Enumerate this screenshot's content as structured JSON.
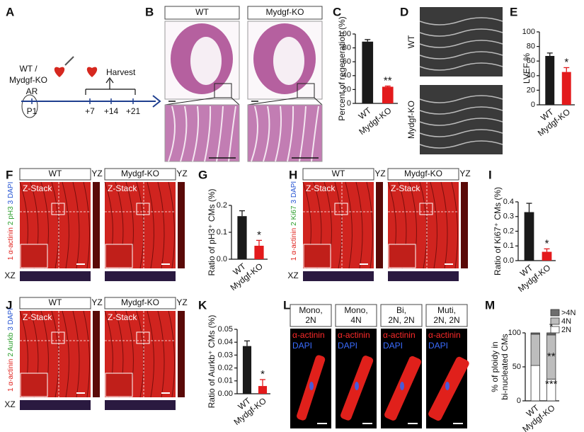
{
  "panels": {
    "letters": [
      "A",
      "B",
      "C",
      "D",
      "E",
      "F",
      "G",
      "H",
      "I",
      "J",
      "K",
      "L",
      "M"
    ]
  },
  "scheme": {
    "genotype": [
      "WT /",
      "Mydgf-KO"
    ],
    "surgery": "AR",
    "timepoints": [
      "P1",
      "+7",
      "+14",
      "+21"
    ],
    "harvest": "Harvest"
  },
  "histology": {
    "groups": [
      "WT",
      "Mydgf-KO"
    ]
  },
  "echo": {
    "groups": [
      "WT",
      "Mydgf-KO"
    ]
  },
  "stains": [
    {
      "groups": [
        "WT",
        "Mydgf-KO"
      ],
      "orth": [
        "YZ",
        "XZ"
      ],
      "zstack": "Z-Stack",
      "channels": [
        {
          "text": "1 α-actinin",
          "color": "#e0201b"
        },
        {
          "text": "2 pH3",
          "color": "#2a9d2a"
        },
        {
          "text": "3 DAPI",
          "color": "#1f4fd1"
        }
      ]
    },
    {
      "groups": [
        "WT",
        "Mydgf-KO"
      ],
      "orth": [
        "YZ",
        "XZ"
      ],
      "zstack": "Z-Stack",
      "channels": [
        {
          "text": "1 α-actinin",
          "color": "#e0201b"
        },
        {
          "text": "2 Ki67",
          "color": "#2a9d2a"
        },
        {
          "text": "3 DAPI",
          "color": "#1f4fd1"
        }
      ]
    },
    {
      "groups": [
        "WT",
        "Mydgf-KO"
      ],
      "orth": [
        "YZ",
        "XZ"
      ],
      "zstack": "Z-Stack",
      "channels": [
        {
          "text": "1 α-actinin",
          "color": "#e0201b"
        },
        {
          "text": "2 Aurkb",
          "color": "#2a9d2a"
        },
        {
          "text": "3 DAPI",
          "color": "#1f4fd1"
        }
      ]
    }
  ],
  "cells": {
    "columns": [
      {
        "header": [
          "Mono,",
          "2N"
        ],
        "labels": [
          {
            "text": "α-actinin",
            "color": "#ff2a2a"
          },
          {
            "text": "DAPI",
            "color": "#3a6cff"
          }
        ]
      },
      {
        "header": [
          "Mono,",
          "4N"
        ],
        "labels": [
          {
            "text": "α-actinin",
            "color": "#ff2a2a"
          },
          {
            "text": "DAPI",
            "color": "#3a6cff"
          }
        ]
      },
      {
        "header": [
          "Bi,",
          "2N, 2N"
        ],
        "labels": [
          {
            "text": "α-actinin",
            "color": "#ff2a2a"
          },
          {
            "text": "DAPI",
            "color": "#3a6cff"
          }
        ]
      },
      {
        "header": [
          "Muti,",
          "2N, 2N"
        ],
        "labels": [
          {
            "text": "α-actinin",
            "color": "#ff2a2a"
          },
          {
            "text": "DAPI",
            "color": "#3a6cff"
          }
        ]
      }
    ]
  },
  "chart_data": [
    {
      "type": "bar",
      "ylabel": [
        "Percent of regeneration (%)"
      ],
      "categories": [
        "WT",
        "Mydgf-KO"
      ],
      "values": [
        89,
        24
      ],
      "errors": [
        3,
        1
      ],
      "colors": [
        "#1a1a1a",
        "#e31a1c"
      ],
      "ylim": [
        0,
        100
      ],
      "yticks": [
        0,
        20,
        40,
        60,
        80,
        100
      ],
      "annotation": "**"
    },
    {
      "type": "bar",
      "ylabel": [
        "LVEF %"
      ],
      "categories": [
        "WT",
        "Mydgf-KO"
      ],
      "values": [
        67,
        45
      ],
      "errors": [
        4,
        6
      ],
      "colors": [
        "#1a1a1a",
        "#e31a1c"
      ],
      "ylim": [
        0,
        100
      ],
      "yticks": [
        0,
        20,
        40,
        60,
        80,
        100
      ],
      "annotation": "*"
    },
    {
      "type": "bar",
      "ylabel": [
        "Ratio of pH3⁺ CMs (%)"
      ],
      "categories": [
        "WT",
        "Mydgf-KO"
      ],
      "values": [
        0.16,
        0.05
      ],
      "errors": [
        0.02,
        0.02
      ],
      "colors": [
        "#1a1a1a",
        "#e31a1c"
      ],
      "ylim": [
        0,
        0.2
      ],
      "yticks": [
        {
          "value": 0,
          "label": "0.0"
        },
        0.1,
        0.2
      ],
      "annotation": "*"
    },
    {
      "type": "bar",
      "ylabel": [
        "Ratio of Ki67⁺ CMs (%)"
      ],
      "categories": [
        "WT",
        "Mydgf-KO"
      ],
      "values": [
        0.33,
        0.06
      ],
      "errors": [
        0.06,
        0.02
      ],
      "colors": [
        "#1a1a1a",
        "#e31a1c"
      ],
      "ylim": [
        0,
        0.4
      ],
      "yticks": [
        {
          "value": 0,
          "label": "0.0"
        },
        0.1,
        0.2,
        0.3,
        0.4
      ],
      "annotation": "*"
    },
    {
      "type": "bar",
      "ylabel": [
        "Ratio of Aurkb⁺ CMs (%)"
      ],
      "categories": [
        "WT",
        "Mydgf-KO"
      ],
      "values": [
        0.037,
        0.006
      ],
      "errors": [
        0.004,
        0.005
      ],
      "colors": [
        "#1a1a1a",
        "#e31a1c"
      ],
      "ylim": [
        0,
        0.05
      ],
      "yticks": [
        {
          "value": 0,
          "label": "0.00"
        },
        0.01,
        0.02,
        0.03,
        0.04,
        0.05
      ],
      "annotation": "*"
    },
    {
      "type": "stacked_bar",
      "ylabel": [
        "% of ploidy in",
        "bi-nucleated CMs"
      ],
      "categories": [
        "WT",
        "Mydgf-KO"
      ],
      "series": [
        {
          "name": "2N",
          "color": "#ffffff",
          "values": [
            52,
            32
          ]
        },
        {
          "name": "4N",
          "color": "#bdbdbd",
          "values": [
            46,
            65
          ]
        },
        {
          "name": ">4N",
          "color": "#6e6e6e",
          "values": [
            2,
            3
          ]
        }
      ],
      "ylim": [
        0,
        100
      ],
      "yticks": [
        0,
        50,
        100
      ],
      "annotations": [
        "*",
        "**",
        "***"
      ]
    }
  ]
}
